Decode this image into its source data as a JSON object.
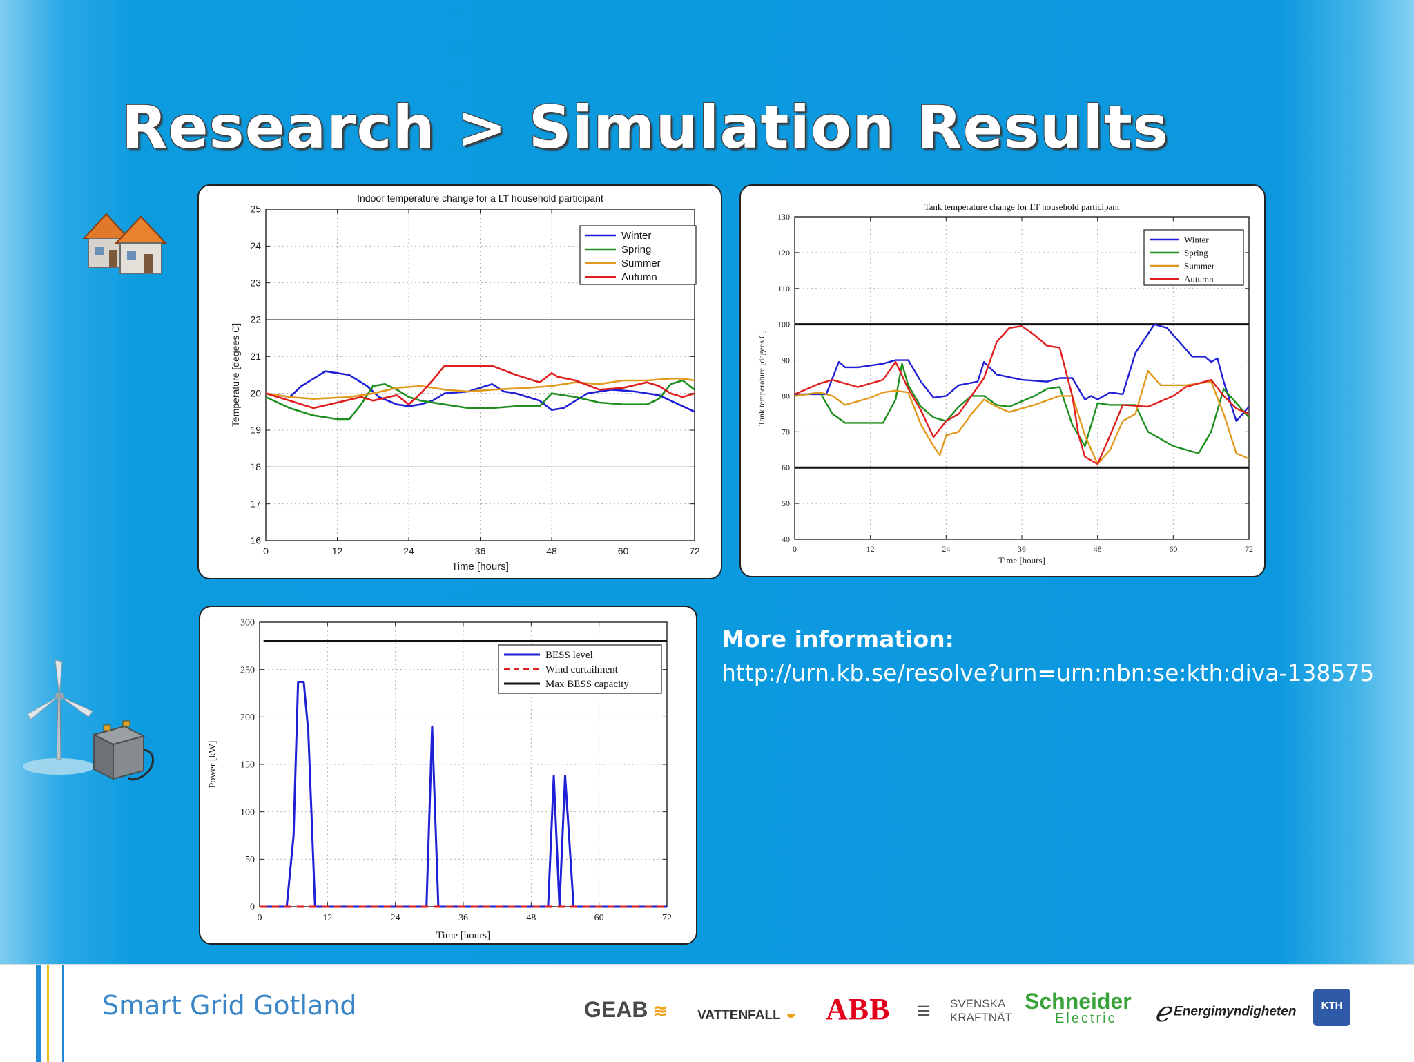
{
  "slide": {
    "title": "Research > Simulation Results",
    "info_heading": "More information:",
    "info_url": "http://urn.kb.se/resolve?urn=urn:nbn:se:kth:diva-138575"
  },
  "footer": {
    "brand": "Smart Grid Gotland",
    "logos": [
      "GEAB",
      "VATTENFALL",
      "ABB",
      "SVENSKA",
      "KRAFTNÄT",
      "Schneider",
      "Electric",
      "Energimyndigheten",
      "KTH"
    ]
  },
  "icons": [
    "houses-icon",
    "wind-turbine-icon",
    "battery-icon"
  ],
  "chart_data": [
    {
      "type": "line",
      "title": "Indoor temperature change for a LT household participant",
      "xlabel": "Time [hours]",
      "ylabel": "Temperature [degees C]",
      "xlim": [
        0,
        72
      ],
      "ylim": [
        16,
        25
      ],
      "xticks": [
        0,
        12,
        24,
        36,
        48,
        60,
        72
      ],
      "yticks": [
        16,
        17,
        18,
        19,
        20,
        21,
        22,
        23,
        24,
        25
      ],
      "grid": "dotted",
      "legend": "top-right",
      "hlines": [
        18,
        22
      ],
      "series": [
        {
          "name": "Winter",
          "color": "#1f1fd6",
          "x": [
            0,
            4,
            6,
            10,
            14,
            17,
            19,
            22,
            24,
            26,
            28,
            30,
            34,
            38,
            40,
            42,
            46,
            48,
            50,
            52,
            54,
            58,
            62,
            66,
            68,
            72
          ],
          "y": [
            20.0,
            19.9,
            20.2,
            20.6,
            20.5,
            20.2,
            19.9,
            19.7,
            19.65,
            19.7,
            19.8,
            20.0,
            20.05,
            20.25,
            20.05,
            20.0,
            19.8,
            19.55,
            19.6,
            19.8,
            20.0,
            20.1,
            20.05,
            19.95,
            19.8,
            19.5
          ]
        },
        {
          "name": "Spring",
          "color": "#1e8f1e",
          "x": [
            0,
            4,
            8,
            12,
            14,
            16,
            18,
            20,
            22,
            24,
            26,
            30,
            34,
            38,
            42,
            46,
            48,
            52,
            56,
            60,
            64,
            66,
            68,
            70,
            72
          ],
          "y": [
            19.9,
            19.6,
            19.4,
            19.3,
            19.3,
            19.7,
            20.2,
            20.25,
            20.1,
            19.9,
            19.8,
            19.7,
            19.6,
            19.6,
            19.65,
            19.65,
            20.0,
            19.9,
            19.75,
            19.7,
            19.7,
            19.85,
            20.25,
            20.35,
            20.1
          ]
        },
        {
          "name": "Summer",
          "color": "#e09a1e",
          "x": [
            0,
            4,
            8,
            14,
            18,
            22,
            26,
            30,
            34,
            38,
            44,
            48,
            52,
            56,
            60,
            64,
            68,
            70,
            72
          ],
          "y": [
            20.0,
            19.9,
            19.85,
            19.9,
            20.0,
            20.15,
            20.2,
            20.1,
            20.05,
            20.1,
            20.15,
            20.2,
            20.3,
            20.25,
            20.35,
            20.35,
            20.4,
            20.4,
            20.35
          ]
        },
        {
          "name": "Autumn",
          "color": "#e01e1e",
          "x": [
            0,
            4,
            8,
            12,
            16,
            18,
            22,
            24,
            26,
            28,
            30,
            34,
            38,
            42,
            46,
            48,
            49,
            52,
            56,
            60,
            64,
            66,
            68,
            70,
            72
          ],
          "y": [
            20.0,
            19.8,
            19.6,
            19.75,
            19.9,
            19.8,
            19.95,
            19.7,
            20.0,
            20.35,
            20.75,
            20.75,
            20.75,
            20.5,
            20.3,
            20.55,
            20.45,
            20.35,
            20.1,
            20.15,
            20.3,
            20.2,
            20.0,
            19.9,
            20.0
          ]
        }
      ]
    },
    {
      "type": "line",
      "title": "Tank temperature change for LT household participant",
      "xlabel": "Time [hours]",
      "ylabel": "Tank temperature [degees C]",
      "xlim": [
        0,
        72
      ],
      "ylim": [
        40,
        130
      ],
      "xticks": [
        0,
        12,
        24,
        36,
        48,
        60,
        72
      ],
      "yticks": [
        40,
        50,
        60,
        70,
        80,
        90,
        100,
        110,
        120,
        130
      ],
      "grid": "dotted",
      "legend": "top-right",
      "hlines": [
        60,
        100
      ],
      "series": [
        {
          "name": "Winter",
          "color": "#1f1fd6",
          "x": [
            0,
            5,
            7,
            8,
            10,
            14,
            16,
            18,
            20,
            22,
            24,
            26,
            29,
            30,
            32,
            36,
            40,
            42,
            44,
            46,
            47,
            48,
            50,
            52,
            54,
            57,
            59,
            61,
            63,
            65,
            66,
            67,
            68,
            70,
            72
          ],
          "y": [
            80.5,
            80.5,
            89.5,
            88,
            88,
            89,
            90,
            90,
            84,
            79.5,
            80,
            83,
            84,
            89.5,
            86,
            84.5,
            84,
            85,
            85,
            79,
            80,
            79,
            81,
            80.5,
            92,
            100,
            99,
            95,
            91,
            91,
            89.5,
            90.5,
            84,
            73,
            77
          ]
        },
        {
          "name": "Spring",
          "color": "#1e8f1e",
          "x": [
            0,
            4,
            6,
            8,
            12,
            14,
            16,
            17,
            18,
            20,
            22,
            24,
            26,
            28,
            30,
            32,
            34,
            38,
            40,
            42,
            44,
            46,
            48,
            50,
            54,
            56,
            60,
            64,
            66,
            68,
            70,
            72
          ],
          "y": [
            80,
            81,
            75,
            72.5,
            72.5,
            72.5,
            79,
            89,
            83,
            77,
            74,
            73,
            77,
            80,
            80,
            77.5,
            77,
            80,
            82,
            82.5,
            72,
            66,
            78,
            77.5,
            77.5,
            70,
            66,
            64,
            70,
            82,
            78,
            74
          ]
        },
        {
          "name": "Summer",
          "color": "#e09a1e",
          "x": [
            0,
            4,
            6,
            8,
            12,
            14,
            16,
            18,
            20,
            22,
            23,
            24,
            26,
            28,
            30,
            32,
            34,
            38,
            42,
            44,
            46,
            48,
            50,
            52,
            54,
            56,
            58,
            62,
            66,
            68,
            70,
            72
          ],
          "y": [
            80,
            81,
            80,
            77.5,
            79.5,
            81,
            81.5,
            81,
            72,
            66,
            63.5,
            69,
            70,
            75,
            79,
            77,
            75.5,
            77.5,
            80,
            80,
            69,
            61,
            65,
            73,
            75,
            87,
            83,
            83,
            84,
            75,
            64,
            62.5
          ]
        },
        {
          "name": "Autumn",
          "color": "#e01e1e",
          "x": [
            0,
            4,
            6,
            10,
            14,
            16,
            18,
            20,
            22,
            24,
            26,
            30,
            32,
            34,
            36,
            38,
            40,
            42,
            44,
            45,
            46,
            48,
            50,
            52,
            56,
            60,
            62,
            66,
            68,
            70,
            72
          ],
          "y": [
            80.5,
            83.5,
            84.5,
            82.5,
            84.5,
            89.5,
            82,
            76,
            68.5,
            73,
            75,
            85,
            95,
            99,
            99.5,
            97,
            94,
            93.5,
            80,
            69,
            63,
            61,
            69,
            77.5,
            77,
            80,
            82.5,
            84.5,
            80,
            76.5,
            75
          ]
        }
      ]
    },
    {
      "type": "line",
      "title": "",
      "xlabel": "Time [hours]",
      "ylabel": "Power [kW]",
      "xlim": [
        0,
        72
      ],
      "ylim": [
        0,
        300
      ],
      "xticks": [
        0,
        12,
        24,
        36,
        48,
        60,
        72
      ],
      "yticks": [
        0,
        50,
        100,
        150,
        200,
        250,
        300
      ],
      "grid": "dotted",
      "legend": "top-right",
      "series": [
        {
          "name": "BESS level",
          "color": "#1f1fd6",
          "dash": "",
          "x": [
            0,
            4.8,
            6,
            6.8,
            7.8,
            8.6,
            9.8,
            10.4,
            29.5,
            30.5,
            31.6,
            51,
            52,
            53,
            54,
            55.5,
            72
          ],
          "y": [
            0,
            0,
            75,
            237,
            237,
            185,
            0,
            0,
            0,
            190,
            0,
            0,
            138,
            0,
            138,
            0,
            0
          ]
        },
        {
          "name": "Wind curtailment",
          "color": "#e01e1e",
          "dash": "10,8",
          "x": [
            0,
            72
          ],
          "y": [
            0,
            0
          ]
        },
        {
          "name": "Max BESS capacity",
          "color": "#111111",
          "dash": "",
          "x": [
            0.7,
            72
          ],
          "y": [
            280,
            280
          ]
        }
      ]
    }
  ]
}
